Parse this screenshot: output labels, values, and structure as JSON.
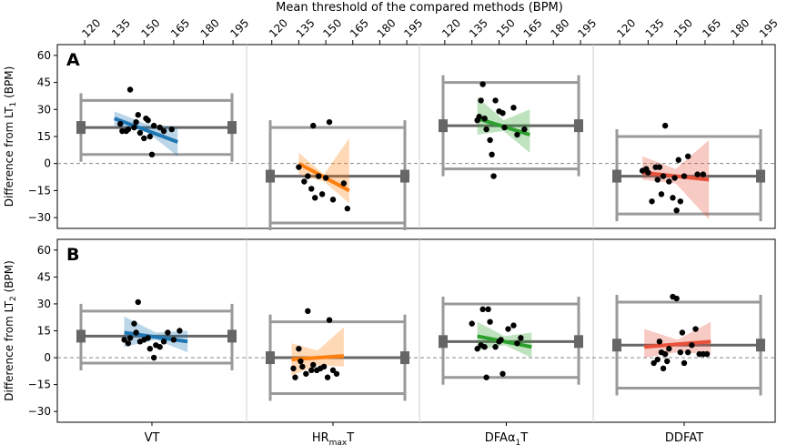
{
  "chart_data": {
    "type": "bland-altman",
    "top_axis": {
      "title": "Mean threshold of the compared methods (BPM)",
      "ticks": [
        120,
        135,
        150,
        165,
        180,
        195
      ],
      "tick_labels": [
        "120",
        "135",
        "150",
        "165",
        "180",
        "195"
      ],
      "range": [
        108,
        200
      ]
    },
    "y_ticks": [
      -30,
      -15,
      0,
      15,
      30,
      45,
      60
    ],
    "y_tick_labels": [
      "−30",
      "−15",
      "0",
      "15",
      "30",
      "45",
      "60"
    ],
    "y_range": [
      -36,
      66
    ],
    "colors": {
      "VT": "#1f77b4",
      "HRmaxT": "#ff7f0e",
      "DFAa1T": "#2ca02c",
      "DDFAT": "#e8503a",
      "bias": "#666666",
      "loa": "#9a9a9a"
    },
    "panels": [
      {
        "label": "A",
        "ylabel_prefix": "Difference from LT",
        "ylabel_sub": "1",
        "ylabel_suffix": " (BPM)",
        "groups": [
          {
            "name": "VT",
            "bias": 20,
            "loa_upper": 35,
            "loa_lower": 5,
            "points": [
              [
                138,
                22
              ],
              [
                139,
                18
              ],
              [
                141,
                18
              ],
              [
                142,
                19
              ],
              [
                143,
                41
              ],
              [
                145,
                20
              ],
              [
                146,
                23
              ],
              [
                147,
                27
              ],
              [
                148,
                17
              ],
              [
                150,
                14
              ],
              [
                151,
                25
              ],
              [
                152,
                24
              ],
              [
                153,
                15
              ],
              [
                154,
                5
              ],
              [
                155,
                21
              ],
              [
                158,
                20
              ],
              [
                160,
                18
              ],
              [
                164,
                19
              ]
            ],
            "regression": {
              "x": [
                135,
                167
              ],
              "y": [
                25,
                12
              ],
              "band_at_start": [
                21,
                29
              ],
              "band_mid": [
                18,
                22
              ],
              "band_at_end": [
                4,
                20
              ]
            }
          },
          {
            "name": "HRmaxT",
            "bias": -7,
            "loa_upper": 20,
            "loa_lower": -33,
            "points": [
              [
                135,
                -2
              ],
              [
                138,
                -10
              ],
              [
                140,
                -7
              ],
              [
                142,
                -14
              ],
              [
                143,
                21
              ],
              [
                144,
                -19
              ],
              [
                146,
                -7
              ],
              [
                148,
                -17
              ],
              [
                150,
                -8
              ],
              [
                152,
                23
              ],
              [
                154,
                -20
              ],
              [
                160,
                -11
              ],
              [
                162,
                -25
              ]
            ],
            "regression": {
              "x": [
                135,
                163
              ],
              "y": [
                0,
                -15
              ],
              "band_at_start": [
                -6,
                6
              ],
              "band_mid": [
                -10,
                -6
              ],
              "band_at_end": [
                -22,
                14
              ]
            }
          },
          {
            "name": "DFAa1T",
            "bias": 21,
            "loa_upper": 45,
            "loa_lower": -3,
            "points": [
              [
                138,
                24
              ],
              [
                139,
                26
              ],
              [
                140,
                35
              ],
              [
                141,
                44
              ],
              [
                142,
                25
              ],
              [
                143,
                19
              ],
              [
                145,
                13
              ],
              [
                146,
                5
              ],
              [
                147,
                -7
              ],
              [
                148,
                35
              ],
              [
                150,
                29
              ],
              [
                152,
                28
              ],
              [
                153,
                20
              ],
              [
                158,
                31
              ],
              [
                160,
                16
              ],
              [
                164,
                19
              ]
            ],
            "regression": {
              "x": [
                138,
                167
              ],
              "y": [
                25,
                16
              ],
              "band_at_start": [
                16,
                37
              ],
              "band_mid": [
                18,
                24
              ],
              "band_at_end": [
                6,
                30
              ]
            }
          },
          {
            "name": "DDFAT",
            "bias": -7,
            "loa_upper": 15,
            "loa_lower": -28,
            "points": [
              [
                132,
                -4
              ],
              [
                134,
                -3
              ],
              [
                135,
                -5
              ],
              [
                137,
                -21
              ],
              [
                139,
                -2
              ],
              [
                140,
                -9
              ],
              [
                141,
                -2
              ],
              [
                142,
                -17
              ],
              [
                143,
                -7
              ],
              [
                144,
                21
              ],
              [
                146,
                -10
              ],
              [
                148,
                -19
              ],
              [
                149,
                -8
              ],
              [
                150,
                -26
              ],
              [
                151,
                2
              ],
              [
                152,
                -21
              ],
              [
                154,
                -7
              ],
              [
                156,
                4
              ],
              [
                161,
                -6
              ],
              [
                164,
                -6
              ]
            ],
            "regression": {
              "x": [
                132,
                167
              ],
              "y": [
                -5,
                -9
              ],
              "band_at_start": [
                -9,
                4
              ],
              "band_mid": [
                -11,
                -3
              ],
              "band_at_end": [
                -31,
                13
              ]
            }
          }
        ]
      },
      {
        "label": "B",
        "ylabel_prefix": "Difference from LT",
        "ylabel_sub": "2",
        "ylabel_suffix": " (BPM)",
        "groups": [
          {
            "name": "VT",
            "bias": 12,
            "loa_upper": 26,
            "loa_lower": -3,
            "points": [
              [
                140,
                10
              ],
              [
                142,
                8
              ],
              [
                143,
                11
              ],
              [
                145,
                19
              ],
              [
                146,
                14
              ],
              [
                147,
                31
              ],
              [
                148,
                9
              ],
              [
                150,
                10
              ],
              [
                152,
                11
              ],
              [
                153,
                5
              ],
              [
                155,
                0
              ],
              [
                156,
                7
              ],
              [
                158,
                6
              ],
              [
                160,
                9
              ],
              [
                162,
                14
              ],
              [
                165,
                10
              ],
              [
                168,
                15
              ]
            ],
            "regression": {
              "x": [
                140,
                172
              ],
              "y": [
                14,
                9
              ],
              "band_at_start": [
                6,
                23
              ],
              "band_mid": [
                10,
                14
              ],
              "band_at_end": [
                3,
                15
              ]
            }
          },
          {
            "name": "HRmaxT",
            "bias": 0,
            "loa_upper": 20,
            "loa_lower": -20,
            "points": [
              [
                132,
                -6
              ],
              [
                133,
                -11
              ],
              [
                135,
                5
              ],
              [
                136,
                -2
              ],
              [
                137,
                -5
              ],
              [
                139,
                -9
              ],
              [
                140,
                26
              ],
              [
                142,
                -7
              ],
              [
                143,
                -4
              ],
              [
                145,
                -7
              ],
              [
                147,
                -6
              ],
              [
                149,
                -5
              ],
              [
                151,
                -11
              ],
              [
                152,
                21
              ],
              [
                154,
                -7
              ],
              [
                156,
                -9
              ]
            ],
            "regression": {
              "x": [
                131,
                160
              ],
              "y": [
                -1,
                1
              ],
              "band_at_start": [
                -10,
                8
              ],
              "band_mid": [
                -4,
                4
              ],
              "band_at_end": [
                -5,
                17
              ]
            }
          },
          {
            "name": "DFAa1T",
            "bias": 9,
            "loa_upper": 30,
            "loa_lower": -11,
            "points": [
              [
                135,
                19
              ],
              [
                138,
                5
              ],
              [
                140,
                7
              ],
              [
                141,
                27
              ],
              [
                142,
                6
              ],
              [
                143,
                -11
              ],
              [
                144,
                27
              ],
              [
                145,
                20
              ],
              [
                148,
                6
              ],
              [
                150,
                9
              ],
              [
                151,
                10
              ],
              [
                152,
                -9
              ],
              [
                155,
                16
              ],
              [
                158,
                18
              ],
              [
                160,
                8
              ],
              [
                162,
                11
              ]
            ],
            "regression": {
              "x": [
                138,
                168
              ],
              "y": [
                12,
                6
              ],
              "band_at_start": [
                4,
                20
              ],
              "band_mid": [
                7,
                12
              ],
              "band_at_end": [
                0,
                14
              ]
            }
          },
          {
            "name": "DDFAT",
            "bias": 7,
            "loa_upper": 31,
            "loa_lower": -17,
            "points": [
              [
                138,
                -3
              ],
              [
                140,
                -1
              ],
              [
                141,
                9
              ],
              [
                142,
                3
              ],
              [
                143,
                -6
              ],
              [
                144,
                2
              ],
              [
                145,
                -2
              ],
              [
                146,
                5
              ],
              [
                148,
                34
              ],
              [
                150,
                33
              ],
              [
                152,
                3
              ],
              [
                153,
                14
              ],
              [
                154,
                -3
              ],
              [
                156,
                3
              ],
              [
                158,
                7
              ],
              [
                160,
                16
              ],
              [
                162,
                2
              ],
              [
                164,
                2
              ],
              [
                166,
                2
              ]
            ],
            "regression": {
              "x": [
                133,
                168
              ],
              "y": [
                6,
                9
              ],
              "band_at_start": [
                0,
                16
              ],
              "band_mid": [
                3,
                10
              ],
              "band_at_end": [
                2,
                20
              ]
            }
          }
        ]
      }
    ],
    "x_labels": [
      {
        "main": "VT",
        "sub": "",
        "rest": ""
      },
      {
        "main": "HR",
        "sub": "max",
        "rest": "T"
      },
      {
        "main": "DFAα",
        "sub": "1",
        "rest": "T"
      },
      {
        "main": "DDFAT",
        "sub": "",
        "rest": ""
      }
    ]
  }
}
